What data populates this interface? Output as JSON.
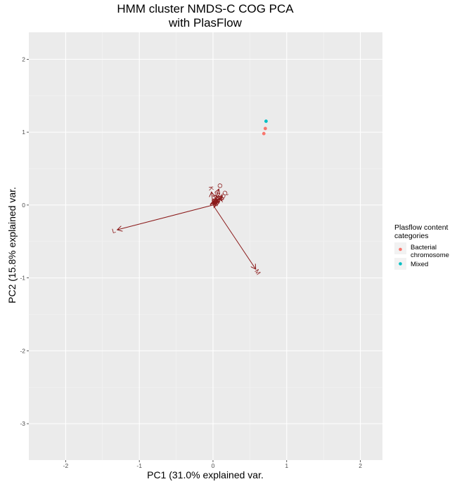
{
  "chart_data": {
    "type": "scatter",
    "title_line1": "HMM cluster NMDS-C COG PCA",
    "title_line2": "with PlasFlow",
    "xlabel": "PC1 (31.0% explained var.",
    "ylabel": "PC2 (15.8% explained var.",
    "xlim": [
      -2.5,
      2.3
    ],
    "ylim": [
      -3.5,
      2.37
    ],
    "x_ticks": [
      -2,
      -1,
      0,
      1,
      2
    ],
    "y_ticks": [
      2,
      1,
      0,
      -1,
      -2,
      -3
    ],
    "x_tick_labels": [
      "-2",
      "-1",
      "0",
      "1",
      "2"
    ],
    "y_tick_labels": [
      "2",
      "1",
      "0",
      "-1",
      "-2",
      "-3"
    ],
    "grid": true,
    "legend": {
      "title_line1": "Plasflow content",
      "title_line2": "categories",
      "placement": "right",
      "entries": [
        {
          "label_line1": "Bacterial",
          "label_line2": "chromosome",
          "color": "#F8766D"
        },
        {
          "label_line1": "Mixed",
          "label_line2": "",
          "color": "#00BFC4"
        }
      ]
    },
    "series": [
      {
        "name": "Bacterial chromosome",
        "color": "#F8766D",
        "points": [
          {
            "x": 0.71,
            "y": 1.05
          },
          {
            "x": 0.69,
            "y": 0.98
          }
        ]
      },
      {
        "name": "Mixed",
        "color": "#00BFC4",
        "points": [
          {
            "x": 0.72,
            "y": 1.15
          }
        ]
      }
    ],
    "loadings": {
      "color": "#8B1A1A",
      "vectors": [
        {
          "label": "L",
          "x": -1.3,
          "y": -0.34
        },
        {
          "label": "M",
          "x": 0.58,
          "y": -0.88
        },
        {
          "label": "K",
          "x": -0.02,
          "y": 0.18
        },
        {
          "label": "O",
          "x": 0.08,
          "y": 0.22
        },
        {
          "label": "Q",
          "x": 0.13,
          "y": 0.13
        },
        {
          "label": "C",
          "x": 0.1,
          "y": 0.09
        },
        {
          "label": "E",
          "x": 0.07,
          "y": 0.06
        },
        {
          "label": "G",
          "x": 0.04,
          "y": 0.1
        },
        {
          "label": "J",
          "x": 0.02,
          "y": 0.07
        },
        {
          "label": "H",
          "x": 0.05,
          "y": 0.04
        },
        {
          "label": "P",
          "x": 0.09,
          "y": 0.05
        },
        {
          "label": "F",
          "x": 0.03,
          "y": 0.03
        },
        {
          "label": "I",
          "x": 0.06,
          "y": 0.08
        },
        {
          "label": "V",
          "x": 0.01,
          "y": 0.05
        },
        {
          "label": "T",
          "x": 0.04,
          "y": 0.06
        }
      ]
    }
  }
}
